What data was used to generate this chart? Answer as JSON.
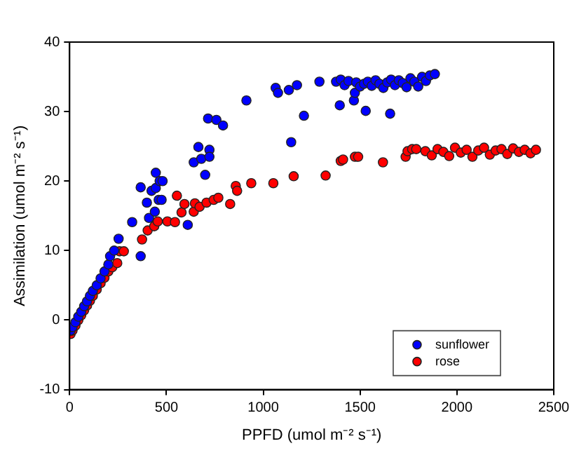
{
  "chart_data": {
    "type": "scatter",
    "xlabel": "PPFD (umol m⁻² s⁻¹)",
    "ylabel": "Assimilation (umol m⁻² s⁻¹)",
    "xlim": [
      0,
      2500
    ],
    "xticks": [
      0,
      500,
      1000,
      1500,
      2000,
      2500
    ],
    "ylim": [
      -10,
      40
    ],
    "yticks": [
      -10,
      0,
      10,
      20,
      30,
      40
    ],
    "grid": false,
    "legend": "bottom right",
    "marker": "circle",
    "series": [
      {
        "name": "sunflower",
        "color": "#0000ff",
        "x": [
          5,
          15,
          30,
          45,
          60,
          75,
          90,
          105,
          120,
          140,
          160,
          180,
          200,
          209,
          230,
          253,
          323,
          367,
          367,
          399,
          410,
          423,
          440,
          445,
          445,
          460,
          465,
          475,
          480,
          610,
          641,
          665,
          680,
          700,
          715,
          722,
          722,
          758,
          792,
          913,
          1064,
          1076,
          1132,
          1144,
          1174,
          1210,
          1290,
          1376,
          1395,
          1400,
          1420,
          1440,
          1468,
          1473,
          1480,
          1500,
          1520,
          1529,
          1540,
          1560,
          1580,
          1600,
          1620,
          1640,
          1655,
          1660,
          1680,
          1700,
          1720,
          1740,
          1760,
          1780,
          1800,
          1820,
          1840,
          1860,
          1886
        ],
        "values": [
          -1.5,
          -1,
          -0.3,
          0.5,
          1.2,
          2,
          2.7,
          3.5,
          4.2,
          5,
          6,
          7,
          8,
          9.2,
          10,
          11.7,
          14.1,
          19.1,
          9.2,
          16.9,
          14.7,
          18.6,
          15.6,
          21.2,
          19,
          17.3,
          20,
          17.3,
          20,
          13.7,
          22.7,
          24.9,
          23.2,
          20.9,
          29,
          24.5,
          23.5,
          28.8,
          28,
          31.6,
          33.4,
          32.7,
          33.1,
          25.6,
          33.8,
          29.4,
          34.3,
          34.3,
          30.9,
          34.6,
          33.8,
          34.4,
          31.6,
          32.7,
          34.2,
          33.6,
          34,
          30.1,
          34.3,
          33.7,
          34.5,
          34,
          33.4,
          34.2,
          29.7,
          34.6,
          33.8,
          34.5,
          34.1,
          33.5,
          34.8,
          34.3,
          33.6,
          35,
          34.4,
          35.2,
          35.4
        ]
      },
      {
        "name": "rose",
        "color": "#ff0000",
        "x": [
          5,
          15,
          30,
          45,
          60,
          75,
          90,
          105,
          120,
          140,
          160,
          180,
          200,
          220,
          246,
          258,
          280,
          374,
          403,
          437,
          455,
          505,
          544,
          554,
          578,
          593,
          641,
          647,
          671,
          707,
          744,
          768,
          829,
          858,
          865,
          938,
          1052,
          1157,
          1322,
          1400,
          1412,
          1473,
          1490,
          1618,
          1735,
          1745,
          1769,
          1790,
          1837,
          1870,
          1900,
          1930,
          1960,
          1990,
          2020,
          2050,
          2080,
          2110,
          2140,
          2170,
          2200,
          2230,
          2260,
          2290,
          2320,
          2350,
          2380,
          2408
        ],
        "values": [
          -2,
          -1.5,
          -0.8,
          0,
          0.7,
          1.4,
          2.1,
          2.8,
          3.5,
          4.4,
          5.3,
          6.1,
          7,
          7.6,
          8.2,
          9.9,
          9.9,
          11.6,
          12.9,
          13.5,
          14.2,
          14.2,
          14.1,
          17.9,
          15.5,
          16.7,
          15.6,
          16.8,
          16.3,
          16.9,
          17.3,
          17.6,
          16.7,
          19.3,
          18.6,
          19.7,
          19.7,
          20.7,
          20.8,
          22.9,
          23.1,
          23.5,
          23.5,
          22.7,
          23.5,
          24.3,
          24.6,
          24.6,
          24.3,
          23.7,
          24.6,
          24.2,
          23.6,
          24.8,
          24.1,
          24.5,
          23.5,
          24.4,
          24.8,
          23.8,
          24.4,
          24.6,
          23.9,
          24.7,
          24.2,
          24.5,
          24,
          24.5
        ]
      }
    ]
  }
}
